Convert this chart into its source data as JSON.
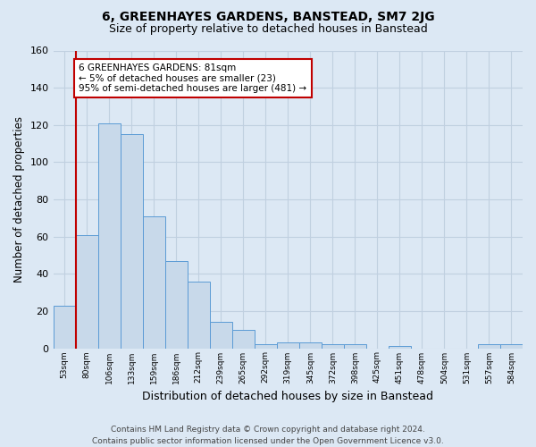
{
  "title": "6, GREENHAYES GARDENS, BANSTEAD, SM7 2JG",
  "subtitle": "Size of property relative to detached houses in Banstead",
  "xlabel": "Distribution of detached houses by size in Banstead",
  "ylabel": "Number of detached properties",
  "footer_line1": "Contains HM Land Registry data © Crown copyright and database right 2024.",
  "footer_line2": "Contains public sector information licensed under the Open Government Licence v3.0.",
  "bin_labels": [
    "53sqm",
    "80sqm",
    "106sqm",
    "133sqm",
    "159sqm",
    "186sqm",
    "212sqm",
    "239sqm",
    "265sqm",
    "292sqm",
    "319sqm",
    "345sqm",
    "372sqm",
    "398sqm",
    "425sqm",
    "451sqm",
    "478sqm",
    "504sqm",
    "531sqm",
    "557sqm",
    "584sqm"
  ],
  "bar_heights": [
    23,
    61,
    121,
    115,
    71,
    47,
    36,
    14,
    10,
    2,
    3,
    3,
    2,
    2,
    0,
    1,
    0,
    0,
    0,
    2,
    2
  ],
  "bar_color": "#c8d9ea",
  "bar_edge_color": "#5b9bd5",
  "vline_color": "#c00000",
  "annotation_text": "6 GREENHAYES GARDENS: 81sqm\n← 5% of detached houses are smaller (23)\n95% of semi-detached houses are larger (481) →",
  "annotation_box_color": "#ffffff",
  "annotation_box_edge": "#c00000",
  "ylim": [
    0,
    160
  ],
  "yticks": [
    0,
    20,
    40,
    60,
    80,
    100,
    120,
    140,
    160
  ],
  "grid_color": "#c0d0e0",
  "bg_color": "#dce8f4",
  "title_fontsize": 10,
  "subtitle_fontsize": 9,
  "footer_fontsize": 6.5,
  "ylabel_fontsize": 8.5,
  "xlabel_fontsize": 9
}
